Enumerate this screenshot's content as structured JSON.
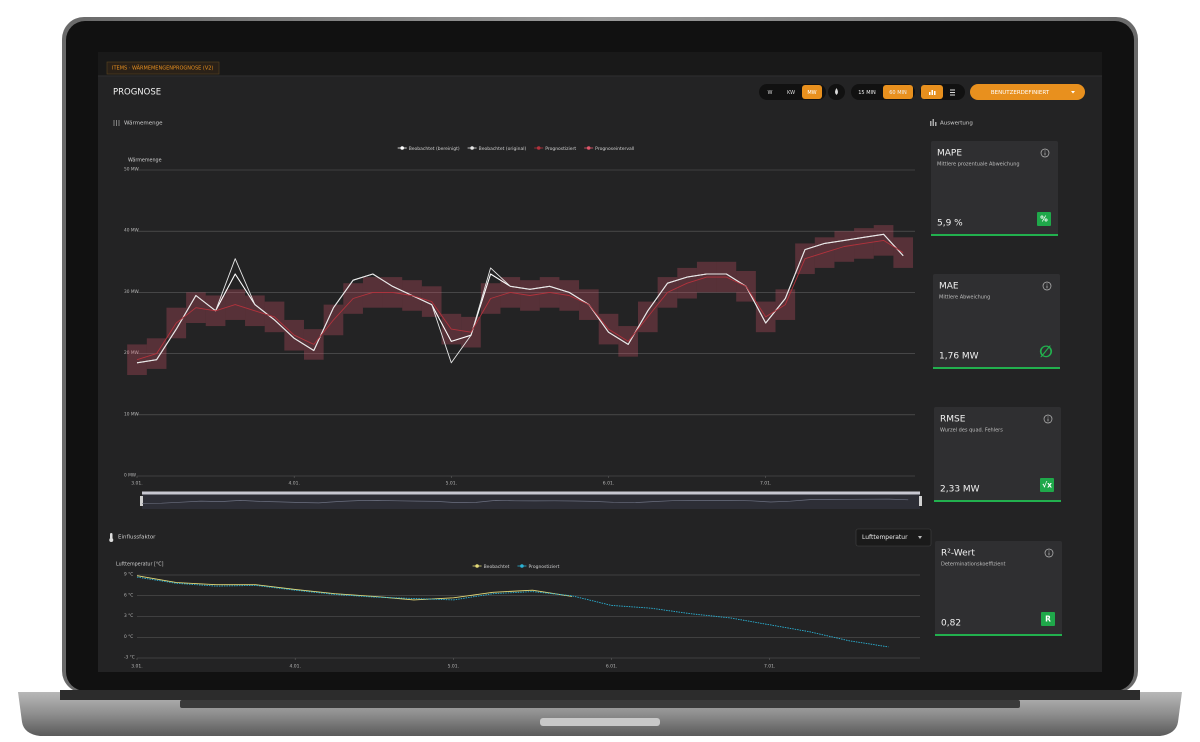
{
  "breadcrumb": "ITEMS · WÄRMEMENGENPROGNOSE (V2)",
  "page_title": "PROGNOSE",
  "toolbar": {
    "units": [
      "W",
      "KW",
      "MW"
    ],
    "active_unit": 2,
    "intervals": [
      "15 MIN",
      "60 MIN"
    ],
    "active_interval": 1,
    "range_button": "BENUTZERDEFINIERT"
  },
  "evaluation_title": "Auswertung",
  "factor_select": "Lufttemperatur",
  "kpis": [
    {
      "title": "MAPE",
      "subtitle": "Mittlere prozentuale Abweichung",
      "value": "5,9 %",
      "icon": "%"
    },
    {
      "title": "MAE",
      "subtitle": "Mittlere Abweichung",
      "value": "1,76 MW",
      "icon": "∅"
    },
    {
      "title": "RMSE",
      "subtitle": "Wurzel des quad. Fehlers",
      "value": "2,33 MW",
      "icon": "√x"
    },
    {
      "title": "R²-Wert",
      "subtitle": "Determinationskoeffizient",
      "value": "0,82",
      "icon": "R"
    }
  ],
  "chart_data": [
    {
      "type": "line",
      "title": "Wärmemenge",
      "ylabel": "Wärmemenge",
      "grid": true,
      "x": [
        3,
        3.125,
        3.25,
        3.375,
        3.5,
        3.625,
        3.75,
        3.875,
        4,
        4.125,
        4.25,
        4.375,
        4.5,
        4.625,
        4.75,
        4.875,
        5,
        5.125,
        5.25,
        5.375,
        5.5,
        5.625,
        5.75,
        5.875,
        6,
        6.125,
        6.25,
        6.375,
        6.5,
        6.625,
        6.75,
        6.875,
        7,
        7.125,
        7.25,
        7.375,
        7.5,
        7.625,
        7.75,
        7.875
      ],
      "xlim": [
        3,
        7.95
      ],
      "xticks": [
        {
          "value": 3,
          "label": "3.01."
        },
        {
          "value": 4,
          "label": "4.01."
        },
        {
          "value": 5,
          "label": "5.01."
        },
        {
          "value": 6,
          "label": "6.01."
        },
        {
          "value": 7,
          "label": "7.01."
        }
      ],
      "ylim": [
        0,
        50
      ],
      "yticks": [
        {
          "value": 0,
          "label": "0 MW"
        },
        {
          "value": 10,
          "label": "10 MW"
        },
        {
          "value": 20,
          "label": "20 MW"
        },
        {
          "value": 30,
          "label": "30 MW"
        },
        {
          "value": 40,
          "label": "40 MW"
        },
        {
          "value": 50,
          "label": "50 MW"
        }
      ],
      "series": [
        {
          "name": "Beobachtet (bereinigt)",
          "color": "#ffffff",
          "values": [
            18.5,
            19,
            24,
            29.5,
            27,
            33,
            28,
            25.5,
            22.5,
            20.5,
            27.5,
            32,
            33,
            31,
            29.5,
            28,
            22,
            23,
            33,
            31,
            30.5,
            31,
            30,
            28,
            23.5,
            21.5,
            27,
            31.5,
            32.5,
            33,
            33,
            31,
            25,
            29,
            37,
            38,
            38.5,
            39,
            39.5,
            36
          ]
        },
        {
          "name": "Beobachtet (original)",
          "color": "#e6e6e6",
          "values": [
            18.5,
            19,
            24,
            29.5,
            27,
            35.5,
            28,
            25.5,
            22.5,
            20.5,
            27.5,
            32,
            33,
            31,
            29.5,
            28,
            18.5,
            23,
            34,
            31,
            30.5,
            31,
            30,
            28,
            23.5,
            21.5,
            27,
            31.5,
            32.5,
            33,
            33,
            31,
            25,
            29,
            37,
            38,
            38.5,
            39,
            39.5,
            36
          ]
        },
        {
          "name": "Prognostiziert",
          "color": "#b3323c",
          "values": [
            19,
            20,
            25,
            27.5,
            27,
            28,
            27,
            26,
            23,
            21.5,
            25.5,
            29,
            30,
            30,
            29.5,
            28.5,
            24,
            23.5,
            29,
            30,
            29.5,
            30,
            29.5,
            28,
            24,
            22,
            26,
            30,
            31.5,
            32.5,
            32.5,
            31,
            26,
            28,
            35.5,
            36.5,
            37.5,
            38,
            38.5,
            36.5
          ]
        },
        {
          "name": "Prognoseintervall",
          "color": "#e0566a",
          "lower": [
            16.5,
            17.5,
            22.5,
            25,
            24.5,
            25.5,
            24.5,
            23.5,
            20.5,
            19,
            23,
            26.5,
            27.5,
            27.5,
            27,
            26,
            21.5,
            21,
            26.5,
            27.5,
            27,
            27.5,
            27,
            25.5,
            21.5,
            19.5,
            23.5,
            27.5,
            29,
            30,
            30,
            28.5,
            23.5,
            25.5,
            33,
            34,
            35,
            35.5,
            36,
            34
          ],
          "upper": [
            21.5,
            22.5,
            27.5,
            30,
            29.5,
            30.5,
            29.5,
            28.5,
            25.5,
            24,
            28,
            31.5,
            32.5,
            32.5,
            32,
            31,
            26.5,
            26,
            31.5,
            32.5,
            32,
            32.5,
            32,
            30.5,
            26.5,
            24.5,
            28.5,
            32.5,
            34,
            35,
            35,
            33.5,
            28.5,
            30.5,
            38,
            39,
            40,
            40.5,
            41,
            39
          ]
        }
      ]
    },
    {
      "type": "line",
      "title": "Einflussfaktor",
      "ylabel": "Lufttemperatur [°C]",
      "grid": true,
      "x": [
        3,
        3.25,
        3.5,
        3.75,
        4,
        4.25,
        4.5,
        4.75,
        5,
        5.25,
        5.5,
        5.75,
        6,
        6.25,
        6.5,
        6.75,
        7,
        7.25,
        7.5,
        7.75
      ],
      "xlim": [
        3,
        7.95
      ],
      "xticks": [
        {
          "value": 3,
          "label": "3.01."
        },
        {
          "value": 4,
          "label": "4.01."
        },
        {
          "value": 5,
          "label": "5.01."
        },
        {
          "value": 6,
          "label": "6.01."
        },
        {
          "value": 7,
          "label": "7.01."
        }
      ],
      "ylim": [
        -3,
        9
      ],
      "yticks": [
        {
          "value": -3,
          "label": "-3 °C"
        },
        {
          "value": 0,
          "label": "0 °C"
        },
        {
          "value": 3,
          "label": "3 °C"
        },
        {
          "value": 6,
          "label": "6 °C"
        },
        {
          "value": 9,
          "label": "9 °C"
        }
      ],
      "series": [
        {
          "name": "Beobachtet",
          "color": "#e4d977",
          "values": [
            8.9,
            7.9,
            7.6,
            7.6,
            6.9,
            6.3,
            5.9,
            5.4,
            5.7,
            6.5,
            6.8,
            5.9,
            null,
            null,
            null,
            null,
            null,
            null,
            null,
            null
          ]
        },
        {
          "name": "Prognostiziert",
          "color": "#2bb3d6",
          "dashed": true,
          "values": [
            8.7,
            7.8,
            7.4,
            7.5,
            6.8,
            6.2,
            5.8,
            5.6,
            5.4,
            6.3,
            6.6,
            6.0,
            4.6,
            4.2,
            3.4,
            2.8,
            1.8,
            0.8,
            -0.5,
            -1.4
          ]
        }
      ]
    }
  ]
}
